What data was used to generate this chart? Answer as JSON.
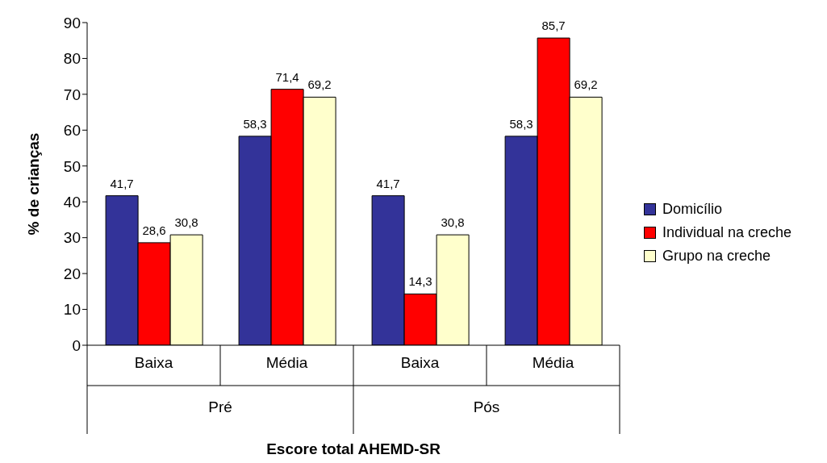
{
  "chart_data": {
    "type": "bar",
    "xlabel": "Escore total AHEMD-SR",
    "ylabel": "% de crianças",
    "categories": [
      "Baixa",
      "Média",
      "Baixa",
      "Média"
    ],
    "annotations": [
      "Pré",
      "Pós"
    ],
    "series": [
      {
        "name": "Domicílio",
        "color": "#333399",
        "values": [
          41.7,
          58.3,
          41.7,
          58.3
        ],
        "value_labels": [
          "41,7",
          "58,3",
          "41,7",
          "58,3"
        ]
      },
      {
        "name": "Individual na creche",
        "color": "#ff0000",
        "values": [
          28.6,
          71.4,
          14.3,
          85.7
        ],
        "value_labels": [
          "28,6",
          "71,4",
          "14,3",
          "85,7"
        ]
      },
      {
        "name": "Grupo na creche",
        "color": "#ffffcc",
        "values": [
          30.8,
          69.2,
          30.8,
          69.2
        ],
        "value_labels": [
          "30,8",
          "69,2",
          "30,8",
          "69,2"
        ]
      }
    ],
    "ylim": [
      0,
      90
    ],
    "yticks": [
      0,
      10,
      20,
      30,
      40,
      50,
      60,
      70,
      80,
      90
    ],
    "grid": false,
    "legend": "right"
  }
}
